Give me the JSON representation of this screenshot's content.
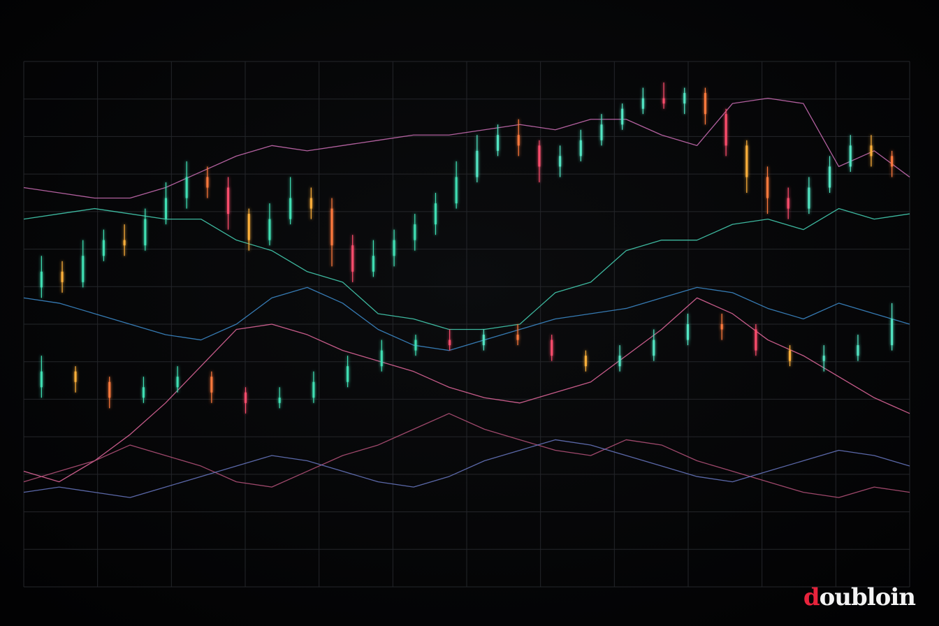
{
  "chart_data": {
    "type": "line",
    "title": "",
    "xlabel": "",
    "ylabel": "",
    "grid": true,
    "xlim": [
      0,
      100
    ],
    "ylim": [
      0,
      100
    ],
    "candles_upper": [
      {
        "o": 57,
        "c": 60,
        "h": 63,
        "l": 55
      },
      {
        "o": 60,
        "c": 58,
        "h": 62,
        "l": 56
      },
      {
        "o": 58,
        "c": 63,
        "h": 66,
        "l": 57
      },
      {
        "o": 63,
        "c": 66,
        "h": 68,
        "l": 62
      },
      {
        "o": 66,
        "c": 65,
        "h": 69,
        "l": 63
      },
      {
        "o": 65,
        "c": 70,
        "h": 72,
        "l": 64
      },
      {
        "o": 70,
        "c": 74,
        "h": 77,
        "l": 69
      },
      {
        "o": 74,
        "c": 78,
        "h": 81,
        "l": 72
      },
      {
        "o": 78,
        "c": 76,
        "h": 80,
        "l": 74
      },
      {
        "o": 76,
        "c": 71,
        "h": 78,
        "l": 68
      },
      {
        "o": 71,
        "c": 66,
        "h": 72,
        "l": 64
      },
      {
        "o": 66,
        "c": 70,
        "h": 73,
        "l": 65
      },
      {
        "o": 70,
        "c": 74,
        "h": 78,
        "l": 69
      },
      {
        "o": 74,
        "c": 72,
        "h": 76,
        "l": 70
      },
      {
        "o": 72,
        "c": 65,
        "h": 74,
        "l": 61
      },
      {
        "o": 65,
        "c": 60,
        "h": 67,
        "l": 58
      },
      {
        "o": 60,
        "c": 63,
        "h": 66,
        "l": 59
      },
      {
        "o": 63,
        "c": 66,
        "h": 68,
        "l": 61
      },
      {
        "o": 66,
        "c": 69,
        "h": 71,
        "l": 64
      },
      {
        "o": 69,
        "c": 73,
        "h": 75,
        "l": 67
      },
      {
        "o": 73,
        "c": 78,
        "h": 81,
        "l": 72
      },
      {
        "o": 78,
        "c": 83,
        "h": 86,
        "l": 77
      },
      {
        "o": 83,
        "c": 86,
        "h": 88,
        "l": 82
      },
      {
        "o": 86,
        "c": 84,
        "h": 89,
        "l": 82
      },
      {
        "o": 84,
        "c": 80,
        "h": 85,
        "l": 77
      },
      {
        "o": 80,
        "c": 82,
        "h": 84,
        "l": 78
      },
      {
        "o": 82,
        "c": 85,
        "h": 87,
        "l": 81
      },
      {
        "o": 85,
        "c": 88,
        "h": 90,
        "l": 84
      },
      {
        "o": 88,
        "c": 91,
        "h": 92,
        "l": 87
      },
      {
        "o": 91,
        "c": 93,
        "h": 95,
        "l": 90
      },
      {
        "o": 93,
        "c": 92,
        "h": 96,
        "l": 91
      },
      {
        "o": 92,
        "c": 94,
        "h": 95,
        "l": 90
      },
      {
        "o": 94,
        "c": 90,
        "h": 95,
        "l": 88
      },
      {
        "o": 90,
        "c": 84,
        "h": 91,
        "l": 82
      },
      {
        "o": 84,
        "c": 78,
        "h": 85,
        "l": 75
      },
      {
        "o": 78,
        "c": 74,
        "h": 80,
        "l": 71
      },
      {
        "o": 74,
        "c": 72,
        "h": 76,
        "l": 70
      },
      {
        "o": 72,
        "c": 76,
        "h": 78,
        "l": 71
      },
      {
        "o": 76,
        "c": 80,
        "h": 82,
        "l": 75
      },
      {
        "o": 80,
        "c": 84,
        "h": 86,
        "l": 79
      },
      {
        "o": 84,
        "c": 82,
        "h": 86,
        "l": 80
      },
      {
        "o": 82,
        "c": 80,
        "h": 83,
        "l": 78
      }
    ],
    "candles_lower": [
      {
        "o": 38,
        "c": 41,
        "h": 44,
        "l": 36
      },
      {
        "o": 41,
        "c": 39,
        "h": 42,
        "l": 37
      },
      {
        "o": 39,
        "c": 36,
        "h": 40,
        "l": 34
      },
      {
        "o": 36,
        "c": 38,
        "h": 40,
        "l": 35
      },
      {
        "o": 38,
        "c": 40,
        "h": 42,
        "l": 37
      },
      {
        "o": 40,
        "c": 37,
        "h": 41,
        "l": 35
      },
      {
        "o": 37,
        "c": 35,
        "h": 38,
        "l": 33
      },
      {
        "o": 35,
        "c": 36,
        "h": 38,
        "l": 34
      },
      {
        "o": 36,
        "c": 39,
        "h": 41,
        "l": 35
      },
      {
        "o": 39,
        "c": 42,
        "h": 44,
        "l": 38
      },
      {
        "o": 42,
        "c": 45,
        "h": 47,
        "l": 41
      },
      {
        "o": 45,
        "c": 47,
        "h": 48,
        "l": 44
      },
      {
        "o": 47,
        "c": 46,
        "h": 49,
        "l": 45
      },
      {
        "o": 46,
        "c": 48,
        "h": 49,
        "l": 45
      },
      {
        "o": 48,
        "c": 47,
        "h": 50,
        "l": 46
      },
      {
        "o": 47,
        "c": 44,
        "h": 48,
        "l": 43
      },
      {
        "o": 44,
        "c": 42,
        "h": 45,
        "l": 41
      },
      {
        "o": 42,
        "c": 44,
        "h": 46,
        "l": 41
      },
      {
        "o": 44,
        "c": 47,
        "h": 49,
        "l": 43
      },
      {
        "o": 47,
        "c": 50,
        "h": 52,
        "l": 46
      },
      {
        "o": 50,
        "c": 49,
        "h": 52,
        "l": 47
      },
      {
        "o": 49,
        "c": 45,
        "h": 50,
        "l": 44
      },
      {
        "o": 45,
        "c": 43,
        "h": 46,
        "l": 42
      },
      {
        "o": 43,
        "c": 44,
        "h": 46,
        "l": 41
      },
      {
        "o": 44,
        "c": 46,
        "h": 48,
        "l": 43
      },
      {
        "o": 46,
        "c": 51,
        "h": 54,
        "l": 45
      }
    ],
    "series": [
      {
        "color": "#d070b8",
        "values": [
          76,
          75,
          74,
          74,
          76,
          79,
          82,
          84,
          83,
          84,
          85,
          86,
          86,
          87,
          88,
          87,
          89,
          89,
          86,
          84,
          92,
          93,
          92,
          80,
          83,
          78
        ]
      },
      {
        "color": "#46d6b8",
        "values": [
          70,
          71,
          72,
          71,
          70,
          70,
          66,
          64,
          60,
          58,
          52,
          51,
          49,
          49,
          50,
          56,
          58,
          64,
          66,
          66,
          69,
          70,
          68,
          72,
          70,
          71
        ]
      },
      {
        "color": "#3e8ed0",
        "values": [
          55,
          54,
          52,
          50,
          48,
          47,
          50,
          55,
          57,
          54,
          49,
          46,
          45,
          47,
          49,
          51,
          52,
          53,
          55,
          57,
          56,
          53,
          51,
          54,
          52,
          50
        ]
      },
      {
        "color": "#e86aa0",
        "values": [
          22,
          20,
          24,
          29,
          35,
          42,
          49,
          50,
          48,
          45,
          43,
          41,
          38,
          36,
          35,
          37,
          39,
          44,
          49,
          55,
          52,
          47,
          44,
          40,
          36,
          33
        ]
      },
      {
        "color": "#b8547c",
        "values": [
          20,
          22,
          24,
          27,
          25,
          23,
          20,
          19,
          22,
          25,
          27,
          30,
          33,
          30,
          28,
          26,
          25,
          28,
          27,
          24,
          22,
          20,
          18,
          17,
          19,
          18
        ]
      },
      {
        "color": "#6a79c4",
        "values": [
          18,
          19,
          18,
          17,
          19,
          21,
          23,
          25,
          24,
          22,
          20,
          19,
          21,
          24,
          26,
          28,
          27,
          25,
          23,
          21,
          20,
          22,
          24,
          26,
          25,
          23
        ]
      }
    ]
  }
}
